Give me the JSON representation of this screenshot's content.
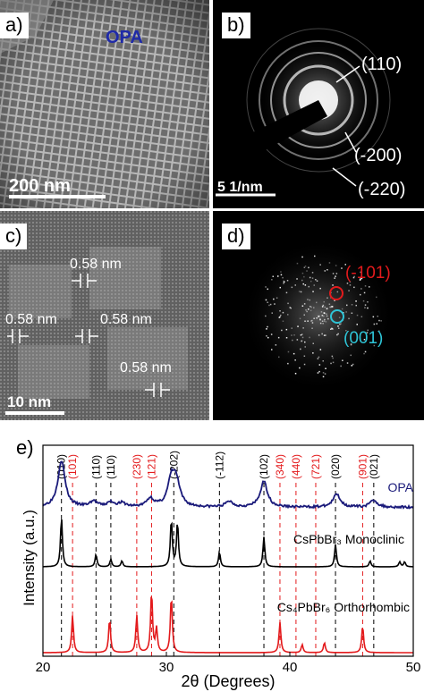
{
  "panels": {
    "a": {
      "label": "a)",
      "sample": "OPA",
      "scalebar": "200 nm"
    },
    "b": {
      "label": "b)",
      "scalebar": "5 1/nm",
      "rings": [
        "(110)",
        "(-200)",
        "(-220)"
      ]
    },
    "c": {
      "label": "c)",
      "scalebar": "10 nm",
      "spacings": [
        "0.58 nm",
        "0.58 nm",
        "0.58 nm",
        "0.58 nm"
      ]
    },
    "d": {
      "label": "d)",
      "spots": [
        "(-101)",
        "(001)"
      ]
    },
    "e": {
      "label": "e)"
    }
  },
  "colors": {
    "opa": "#1a1a7a",
    "monoclinic": "#000000",
    "orthorhombic": "#e31a1c",
    "red_label": "#e31a1c",
    "cyan_label": "#2ec4d6",
    "spot_red": "#e31a1c",
    "spot_cyan": "#2ec4d6"
  },
  "chart_data": {
    "type": "line",
    "xlabel": "2θ (Degrees)",
    "ylabel": "Intensity (a.u.)",
    "xlim": [
      20,
      50
    ],
    "xticks": [
      20,
      30,
      40,
      50
    ],
    "series": [
      {
        "name": "OPA",
        "color": "#1a1a7a",
        "peaks": [
          [
            21.5,
            1.0
          ],
          [
            24.1,
            0.12
          ],
          [
            25.5,
            0.1
          ],
          [
            26.4,
            0.08
          ],
          [
            28.7,
            0.18
          ],
          [
            30.4,
            0.55
          ],
          [
            30.8,
            0.5
          ],
          [
            35.1,
            0.12
          ],
          [
            37.9,
            0.55
          ],
          [
            43.8,
            0.28
          ],
          [
            46.8,
            0.15
          ]
        ]
      },
      {
        "name": "CsPbBr₃ Monoclinic",
        "color": "#000000",
        "peaks": [
          [
            21.5,
            1.0
          ],
          [
            24.3,
            0.25
          ],
          [
            25.5,
            0.15
          ],
          [
            26.4,
            0.12
          ],
          [
            30.4,
            0.95
          ],
          [
            30.9,
            0.9
          ],
          [
            34.3,
            0.3
          ],
          [
            37.9,
            0.6
          ],
          [
            43.7,
            0.45
          ],
          [
            46.5,
            0.12
          ],
          [
            48.9,
            0.1
          ],
          [
            49.3,
            0.1
          ]
        ]
      },
      {
        "name": "Cs₄PbBr₆ Orthorhombic",
        "color": "#e31a1c",
        "peaks": [
          [
            22.4,
            0.55
          ],
          [
            25.4,
            0.5
          ],
          [
            27.6,
            0.55
          ],
          [
            28.8,
            0.9
          ],
          [
            29.2,
            0.35
          ],
          [
            30.4,
            0.85
          ],
          [
            39.2,
            0.45
          ],
          [
            41.0,
            0.12
          ],
          [
            42.8,
            0.15
          ],
          [
            45.9,
            0.4
          ]
        ]
      }
    ],
    "reflections": [
      {
        "label": "(010)",
        "x": 21.5,
        "color": "#000000"
      },
      {
        "label": "(101)",
        "x": 22.4,
        "color": "#e31a1c"
      },
      {
        "label": "(110)",
        "x": 24.3,
        "color": "#000000"
      },
      {
        "label": "(110)",
        "x": 25.5,
        "color": "#000000"
      },
      {
        "label": "(230)",
        "x": 27.6,
        "color": "#e31a1c"
      },
      {
        "label": "(121)",
        "x": 28.8,
        "color": "#e31a1c"
      },
      {
        "label": "(-202)",
        "x": 30.6,
        "color": "#000000"
      },
      {
        "label": "(-112)",
        "x": 34.3,
        "color": "#000000"
      },
      {
        "label": "(102)",
        "x": 37.9,
        "color": "#000000"
      },
      {
        "label": "(340)",
        "x": 39.2,
        "color": "#e31a1c"
      },
      {
        "label": "(440)",
        "x": 40.5,
        "color": "#e31a1c"
      },
      {
        "label": "(721)",
        "x": 42.1,
        "color": "#e31a1c"
      },
      {
        "label": "(020)",
        "x": 43.7,
        "color": "#000000"
      },
      {
        "label": "(901)",
        "x": 45.9,
        "color": "#e31a1c"
      },
      {
        "label": "(021)",
        "x": 46.8,
        "color": "#000000"
      }
    ],
    "grid": false
  }
}
